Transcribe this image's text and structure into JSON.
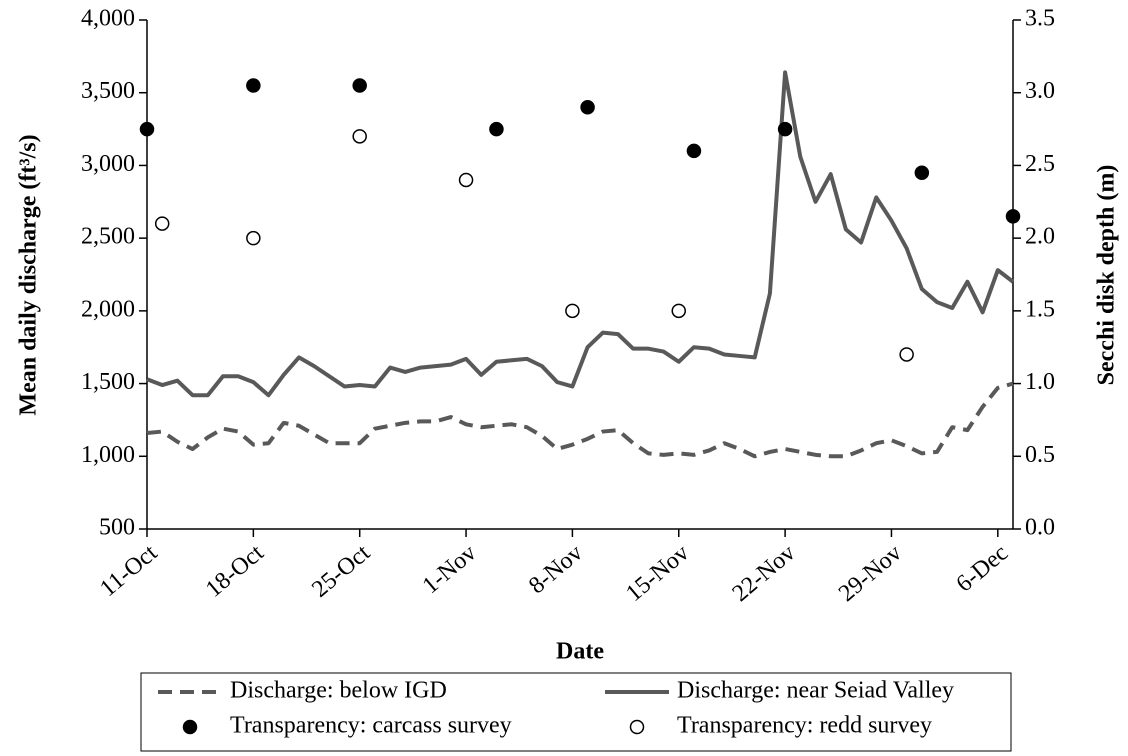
{
  "chart_data": {
    "type": "line",
    "x_label": "Date",
    "y_label": "Mean daily discharge (ft³/s)",
    "y2_label": "Secchi disk depth (m)",
    "categories": [
      "11-Oct",
      null,
      null,
      null,
      null,
      null,
      null,
      "18-Oct",
      null,
      null,
      null,
      null,
      null,
      null,
      "25-Oct",
      null,
      null,
      null,
      null,
      null,
      null,
      "1-Nov",
      null,
      null,
      null,
      null,
      null,
      null,
      "8-Nov",
      null,
      null,
      null,
      null,
      null,
      null,
      "15-Nov",
      null,
      null,
      null,
      null,
      null,
      null,
      "22-Nov",
      null,
      null,
      null,
      null,
      null,
      null,
      "29-Nov",
      null,
      null,
      null,
      null,
      null,
      null,
      "6-Dec",
      null
    ],
    "ylim": [
      500,
      4000
    ],
    "yticks": [
      500,
      {
        "value": 1000,
        "label": "1,000"
      },
      {
        "value": 1500,
        "label": "1,500"
      },
      {
        "value": 2000,
        "label": "2,000"
      },
      {
        "value": 2500,
        "label": "2,500"
      },
      {
        "value": 3000,
        "label": "3,000"
      },
      {
        "value": 3500,
        "label": "3,500"
      },
      {
        "value": 4000,
        "label": "4,000"
      }
    ],
    "y2lim": [
      0,
      3.5
    ],
    "y2ticks": [
      {
        "value": 0,
        "label": "0.0"
      },
      0.5,
      {
        "value": 1,
        "label": "1.0"
      },
      1.5,
      {
        "value": 2,
        "label": "2.0"
      },
      2.5,
      {
        "value": 3,
        "label": "3.0"
      },
      3.5
    ],
    "series": [
      {
        "name": "Discharge: below IGD",
        "type": "line",
        "dashed": true,
        "color": "#595959",
        "values": [
          1160,
          1170,
          1100,
          1050,
          1130,
          1190,
          1170,
          1080,
          1090,
          1230,
          1210,
          1150,
          1090,
          1090,
          1090,
          1190,
          1210,
          1230,
          1240,
          1240,
          1270,
          1220,
          1200,
          1210,
          1220,
          1200,
          1140,
          1050,
          1080,
          1120,
          1170,
          1180,
          1090,
          1020,
          1010,
          1020,
          1010,
          1040,
          1090,
          1050,
          1000,
          1030,
          1050,
          1030,
          1010,
          1000,
          1000,
          1040,
          1090,
          1110,
          1070,
          1020,
          1030,
          1200,
          1180,
          1340,
          1470,
          1500
        ]
      },
      {
        "name": "Discharge: near Seiad Valley",
        "type": "line",
        "dashed": false,
        "color": "#595959",
        "values": [
          1530,
          1490,
          1520,
          1420,
          1420,
          1550,
          1550,
          1510,
          1420,
          1560,
          1680,
          1620,
          1550,
          1480,
          1490,
          1480,
          1610,
          1580,
          1610,
          1620,
          1630,
          1670,
          1560,
          1650,
          1660,
          1670,
          1620,
          1510,
          1480,
          1750,
          1850,
          1840,
          1740,
          1740,
          1720,
          1650,
          1750,
          1740,
          1700,
          1690,
          1680,
          2120,
          3640,
          3060,
          2750,
          2940,
          2560,
          2470,
          2780,
          2620,
          2430,
          2150,
          2060,
          2020,
          2200,
          1990,
          2280,
          2200
        ]
      },
      {
        "name": "Transparency: carcass survey",
        "type": "scatter",
        "axis": "y2",
        "filled": true,
        "color": "#000000",
        "values": [
          2.75,
          null,
          null,
          null,
          null,
          null,
          null,
          3.05,
          null,
          null,
          null,
          null,
          null,
          null,
          3.05,
          null,
          null,
          null,
          null,
          null,
          null,
          null,
          null,
          2.75,
          null,
          null,
          null,
          null,
          null,
          2.9,
          null,
          null,
          null,
          null,
          null,
          null,
          2.6,
          null,
          null,
          null,
          null,
          null,
          2.75,
          null,
          null,
          null,
          null,
          null,
          null,
          null,
          null,
          2.45,
          null,
          null,
          null,
          null,
          null,
          2.15
        ]
      },
      {
        "name": "Transparency: redd survey",
        "type": "scatter",
        "axis": "y2",
        "filled": false,
        "color": "#000000",
        "values": [
          null,
          2.1,
          null,
          null,
          null,
          null,
          null,
          2.0,
          null,
          null,
          null,
          null,
          null,
          null,
          2.7,
          null,
          null,
          null,
          null,
          null,
          null,
          2.4,
          null,
          null,
          null,
          null,
          null,
          null,
          1.5,
          null,
          null,
          null,
          null,
          null,
          null,
          1.5,
          null,
          null,
          null,
          null,
          null,
          null,
          null,
          null,
          null,
          null,
          null,
          null,
          null,
          null,
          1.2,
          null,
          null,
          null,
          null,
          null,
          null,
          null
        ]
      }
    ],
    "legend": "bottom"
  }
}
